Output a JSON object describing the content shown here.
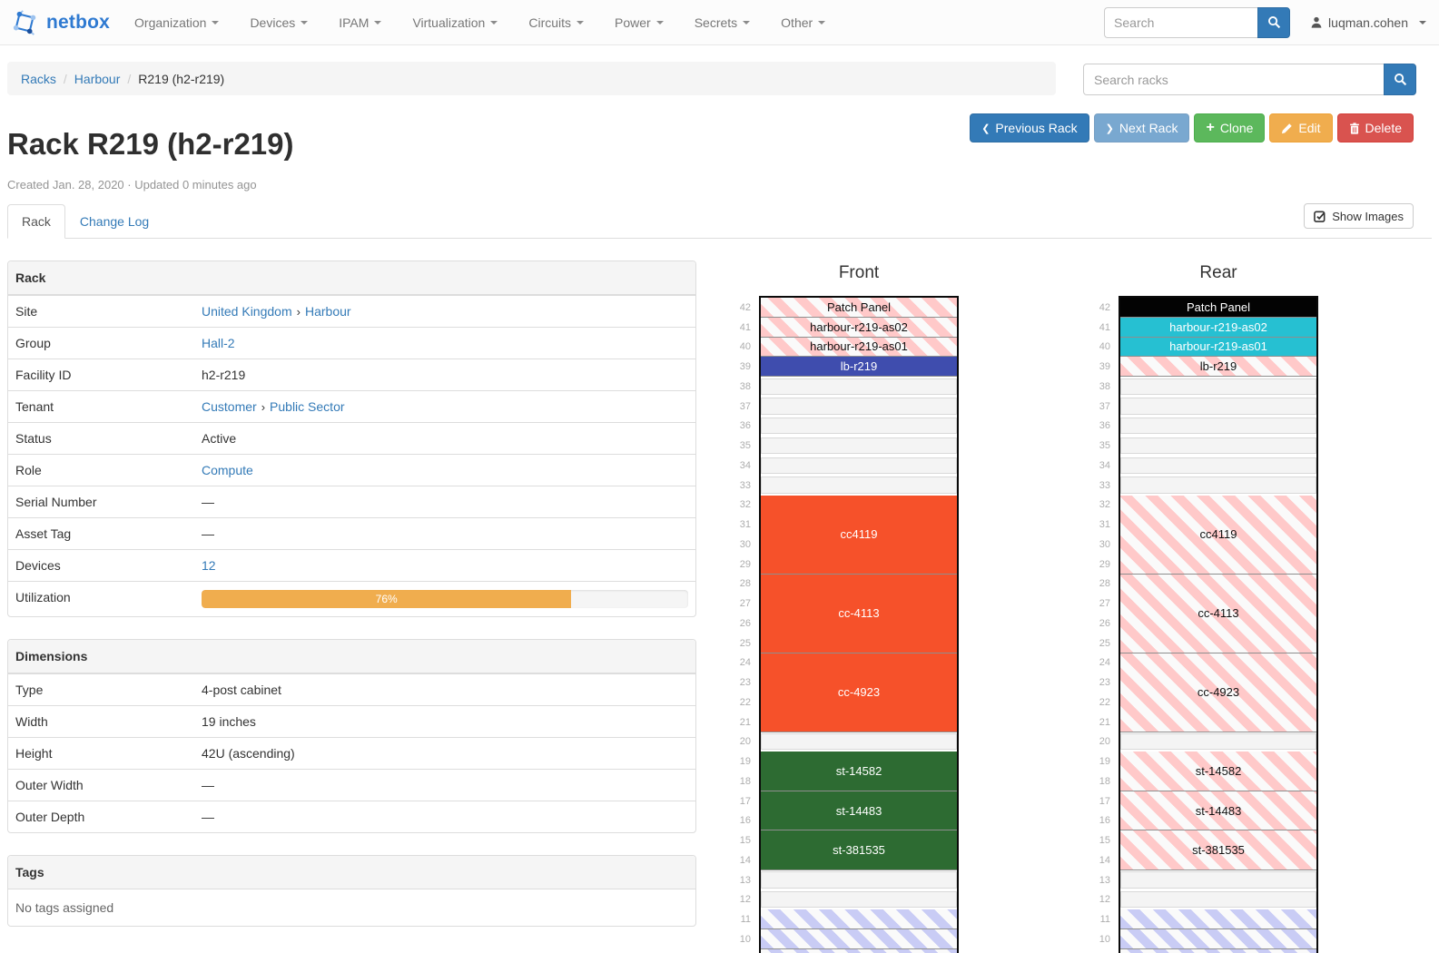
{
  "navbar": {
    "brand": "netbox",
    "items": [
      {
        "label": "Organization"
      },
      {
        "label": "Devices"
      },
      {
        "label": "IPAM"
      },
      {
        "label": "Virtualization"
      },
      {
        "label": "Circuits"
      },
      {
        "label": "Power"
      },
      {
        "label": "Secrets"
      },
      {
        "label": "Other"
      }
    ],
    "search_placeholder": "Search",
    "user": "luqman.cohen"
  },
  "breadcrumb": {
    "items": [
      "Racks",
      "Harbour",
      "R219 (h2-r219)"
    ]
  },
  "rack_search_placeholder": "Search racks",
  "actions": [
    {
      "label": "Previous Rack",
      "icon": "chevron-left",
      "style": "primary",
      "disabled": false
    },
    {
      "label": "Next Rack",
      "icon": "chevron-right",
      "style": "primary",
      "disabled": true
    },
    {
      "label": "Clone",
      "icon": "plus",
      "style": "success",
      "disabled": false
    },
    {
      "label": "Edit",
      "icon": "pencil",
      "style": "warning",
      "disabled": false
    },
    {
      "label": "Delete",
      "icon": "trash",
      "style": "danger",
      "disabled": false
    }
  ],
  "page": {
    "title": "Rack R219 (h2-r219)",
    "meta": "Created Jan. 28, 2020 · Updated 0 minutes ago"
  },
  "tabs": [
    {
      "label": "Rack",
      "active": true
    },
    {
      "label": "Change Log",
      "active": false
    }
  ],
  "show_images_label": "Show Images",
  "panels": [
    {
      "title": "Rack",
      "rows": [
        {
          "label": "Site",
          "parts": [
            {
              "text": "United Kingdom",
              "link": true
            },
            {
              "text": "›",
              "sep": true
            },
            {
              "text": "Harbour",
              "link": true
            }
          ]
        },
        {
          "label": "Group",
          "parts": [
            {
              "text": "Hall-2",
              "link": true
            }
          ]
        },
        {
          "label": "Facility ID",
          "parts": [
            {
              "text": "h2-r219"
            }
          ]
        },
        {
          "label": "Tenant",
          "parts": [
            {
              "text": "Customer",
              "link": true
            },
            {
              "text": "›",
              "sep": true
            },
            {
              "text": "Public Sector",
              "link": true
            }
          ]
        },
        {
          "label": "Status",
          "parts": [
            {
              "text": "Active"
            }
          ]
        },
        {
          "label": "Role",
          "parts": [
            {
              "text": "Compute",
              "link": true
            }
          ]
        },
        {
          "label": "Serial Number",
          "parts": [
            {
              "text": "—"
            }
          ]
        },
        {
          "label": "Asset Tag",
          "parts": [
            {
              "text": "—"
            }
          ]
        },
        {
          "label": "Devices",
          "parts": [
            {
              "text": "12",
              "link": true
            }
          ]
        },
        {
          "label": "Utilization",
          "progress": {
            "percent": 76,
            "text": "76%",
            "color": "#f0ad4e"
          }
        }
      ]
    },
    {
      "title": "Dimensions",
      "rows": [
        {
          "label": "Type",
          "parts": [
            {
              "text": "4-post cabinet"
            }
          ]
        },
        {
          "label": "Width",
          "parts": [
            {
              "text": "19 inches"
            }
          ]
        },
        {
          "label": "Height",
          "parts": [
            {
              "text": "42U (ascending)"
            }
          ]
        },
        {
          "label": "Outer Width",
          "parts": [
            {
              "text": "—"
            }
          ]
        },
        {
          "label": "Outer Depth",
          "parts": [
            {
              "text": "—"
            }
          ]
        }
      ]
    },
    {
      "title": "Tags",
      "body": "No tags assigned"
    }
  ],
  "elevations": {
    "top_unit": 42,
    "last_visible_unit": 9,
    "colors": {
      "hatch_red": "#ffc9c9",
      "hatch_blue": "#c9ccf5",
      "hatch_bg": "#fafafa"
    },
    "views": [
      {
        "id": "front",
        "title": "Front",
        "blocks": [
          {
            "u": 42,
            "h": 1,
            "label": "Patch Panel",
            "kind": "hatch-red"
          },
          {
            "u": 41,
            "h": 1,
            "label": "harbour-r219-as02",
            "kind": "hatch-red"
          },
          {
            "u": 40,
            "h": 1,
            "label": "harbour-r219-as01",
            "kind": "hatch-red"
          },
          {
            "u": 39,
            "h": 1,
            "label": "lb-r219",
            "kind": "device",
            "color": "#3f4dae"
          },
          {
            "u": 32,
            "h": 4,
            "label": "cc4119",
            "kind": "device",
            "color": "#f6512a"
          },
          {
            "u": 28,
            "h": 4,
            "label": "cc-4113",
            "kind": "device",
            "color": "#f6512a"
          },
          {
            "u": 24,
            "h": 4,
            "label": "cc-4923",
            "kind": "device",
            "color": "#f6512a"
          },
          {
            "u": 19,
            "h": 2,
            "label": "st-14582",
            "kind": "device",
            "color": "#2d6b32"
          },
          {
            "u": 17,
            "h": 2,
            "label": "st-14483",
            "kind": "device",
            "color": "#2d6b32"
          },
          {
            "u": 15,
            "h": 2,
            "label": "st-381535",
            "kind": "device",
            "color": "#2d6b32"
          },
          {
            "u": 11,
            "h": 1,
            "label": "",
            "kind": "hatch-blue"
          },
          {
            "u": 10,
            "h": 1,
            "label": "",
            "kind": "hatch-blue"
          },
          {
            "u": 9,
            "h": 1,
            "label": "",
            "kind": "hatch-blue"
          }
        ]
      },
      {
        "id": "rear",
        "title": "Rear",
        "blocks": [
          {
            "u": 42,
            "h": 1,
            "label": "Patch Panel",
            "kind": "device",
            "color": "#030303"
          },
          {
            "u": 41,
            "h": 1,
            "label": "harbour-r219-as02",
            "kind": "device",
            "color": "#26c0d2"
          },
          {
            "u": 40,
            "h": 1,
            "label": "harbour-r219-as01",
            "kind": "device",
            "color": "#26c0d2"
          },
          {
            "u": 39,
            "h": 1,
            "label": "lb-r219",
            "kind": "hatch-red"
          },
          {
            "u": 32,
            "h": 4,
            "label": "cc4119",
            "kind": "hatch-red"
          },
          {
            "u": 28,
            "h": 4,
            "label": "cc-4113",
            "kind": "hatch-red"
          },
          {
            "u": 24,
            "h": 4,
            "label": "cc-4923",
            "kind": "hatch-red"
          },
          {
            "u": 19,
            "h": 2,
            "label": "st-14582",
            "kind": "hatch-red"
          },
          {
            "u": 17,
            "h": 2,
            "label": "st-14483",
            "kind": "hatch-red"
          },
          {
            "u": 15,
            "h": 2,
            "label": "st-381535",
            "kind": "hatch-red"
          },
          {
            "u": 11,
            "h": 1,
            "label": "",
            "kind": "hatch-blue"
          },
          {
            "u": 10,
            "h": 1,
            "label": "",
            "kind": "hatch-blue"
          },
          {
            "u": 9,
            "h": 1,
            "label": "",
            "kind": "hatch-blue"
          }
        ]
      }
    ]
  },
  "colors": {
    "link": "#337ab7",
    "utilization_bar": "#f0ad4e",
    "button_primary": "#337ab7",
    "button_success": "#5cb85c",
    "button_warning": "#f0ad4e",
    "button_danger": "#d9534f"
  }
}
